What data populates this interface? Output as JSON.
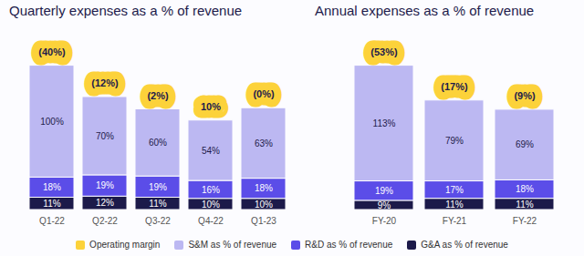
{
  "chart_data": [
    {
      "type": "bar",
      "title": "Quarterly expenses as a % of revenue",
      "categories": [
        "Q1-22",
        "Q2-22",
        "Q3-22",
        "Q4-22",
        "Q1-23"
      ],
      "stacked": true,
      "data_labels": true,
      "tick_labels": "x",
      "legend": "bottom",
      "series": [
        {
          "name": "Operating margin",
          "type": "label",
          "color": "#fcd23a",
          "values": [
            -40,
            -12,
            -2,
            10,
            0
          ],
          "value_labels": [
            "(40%)",
            "(12%)",
            "(2%)",
            "10%",
            "(0%)"
          ]
        },
        {
          "name": "S&M as % of revenue",
          "color": "#bcb8f2",
          "values": [
            100,
            70,
            60,
            54,
            63
          ],
          "value_labels": [
            "100%",
            "70%",
            "60%",
            "54%",
            "63%"
          ]
        },
        {
          "name": "R&D as % of revenue",
          "color": "#5b4de8",
          "values": [
            18,
            19,
            19,
            16,
            18
          ],
          "value_labels": [
            "18%",
            "19%",
            "19%",
            "16%",
            "18%"
          ]
        },
        {
          "name": "G&A as % of revenue",
          "color": "#1c1a4a",
          "values": [
            11,
            12,
            11,
            10,
            10
          ],
          "value_labels": [
            "11%",
            "12%",
            "11%",
            "10%",
            "10%"
          ]
        }
      ]
    },
    {
      "type": "bar",
      "title": "Annual expenses as a % of revenue",
      "categories": [
        "FY-20",
        "FY-21",
        "FY-22"
      ],
      "stacked": true,
      "data_labels": true,
      "tick_labels": "x",
      "legend": "bottom",
      "series": [
        {
          "name": "Operating margin",
          "type": "label",
          "color": "#fcd23a",
          "values": [
            -53,
            -17,
            -9
          ],
          "value_labels": [
            "(53%)",
            "(17%)",
            "(9%)"
          ]
        },
        {
          "name": "S&M as % of revenue",
          "color": "#bcb8f2",
          "values": [
            113,
            79,
            69
          ],
          "value_labels": [
            "113%",
            "79%",
            "69%"
          ]
        },
        {
          "name": "R&D as % of revenue",
          "color": "#5b4de8",
          "values": [
            19,
            17,
            18
          ],
          "value_labels": [
            "19%",
            "17%",
            "18%"
          ]
        },
        {
          "name": "G&A as % of revenue",
          "color": "#1c1a4a",
          "values": [
            9,
            11,
            11
          ],
          "value_labels": [
            "9%",
            "11%",
            "11%"
          ]
        }
      ]
    }
  ]
}
